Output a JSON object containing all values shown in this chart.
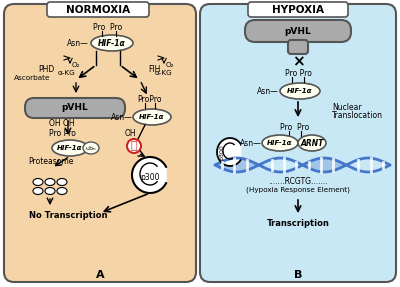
{
  "fig_width": 4.0,
  "fig_height": 2.87,
  "dpi": 100,
  "bg_color": "#ffffff",
  "panel_a_bg": "#f5d5a8",
  "panel_b_bg": "#c8e8f5",
  "panel_border_color": "#555555",
  "title_box_color": "#ffffff",
  "hif_ellipse_color": "#fffff0",
  "pvhl_color": "#aaaaaa",
  "pvhl_border": "#555555",
  "arrow_color": "#000000",
  "dna_color": "#4477cc",
  "red_inhibit": "#cc2222",
  "text_color": "#000000",
  "normoxia_title": "NORMOXIA",
  "hypoxia_title": "HYPOXIA",
  "label_a": "A",
  "label_b": "B"
}
